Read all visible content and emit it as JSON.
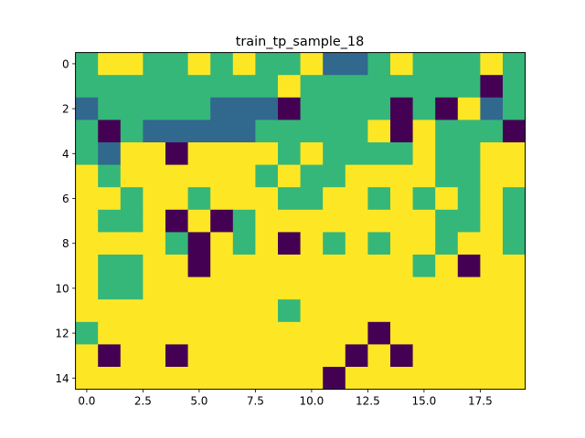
{
  "chart_data": {
    "type": "heatmap",
    "title": "train_tp_sample_18",
    "xlabel": "",
    "ylabel": "",
    "xlim": [
      -0.5,
      19.5
    ],
    "ylim": [
      14.5,
      -0.5
    ],
    "x_ticks": [
      0,
      2.5,
      5,
      7.5,
      10,
      12.5,
      15,
      17.5
    ],
    "x_tick_labels": [
      "0.0",
      "2.5",
      "5.0",
      "7.5",
      "10.0",
      "12.5",
      "15.0",
      "17.5"
    ],
    "y_ticks": [
      0,
      2,
      4,
      6,
      8,
      10,
      12,
      14
    ],
    "y_tick_labels": [
      "0",
      "2",
      "4",
      "6",
      "8",
      "10",
      "12",
      "14"
    ],
    "grid": false,
    "colormap": "viridis",
    "palette": {
      "0": "#440154",
      "1": "#31688e",
      "2": "#35b779",
      "3": "#fde725"
    },
    "rows": [
      [
        2,
        3,
        3,
        2,
        2,
        3,
        2,
        3,
        2,
        2,
        3,
        1,
        1,
        2,
        3,
        2,
        2,
        2,
        3,
        2
      ],
      [
        2,
        2,
        2,
        2,
        2,
        2,
        2,
        2,
        2,
        3,
        2,
        2,
        2,
        2,
        2,
        2,
        2,
        2,
        0,
        2
      ],
      [
        1,
        2,
        2,
        2,
        2,
        2,
        1,
        1,
        1,
        0,
        2,
        2,
        2,
        2,
        0,
        2,
        0,
        3,
        1,
        2
      ],
      [
        2,
        0,
        2,
        1,
        1,
        1,
        1,
        1,
        2,
        2,
        2,
        2,
        2,
        3,
        0,
        3,
        2,
        2,
        2,
        0
      ],
      [
        2,
        1,
        3,
        3,
        0,
        3,
        3,
        3,
        3,
        2,
        3,
        2,
        2,
        2,
        2,
        3,
        2,
        2,
        3,
        3
      ],
      [
        3,
        2,
        3,
        3,
        3,
        3,
        3,
        3,
        2,
        3,
        2,
        2,
        3,
        3,
        3,
        3,
        2,
        2,
        3,
        3
      ],
      [
        3,
        3,
        2,
        3,
        3,
        2,
        3,
        3,
        3,
        2,
        2,
        3,
        3,
        2,
        3,
        2,
        3,
        2,
        3,
        2
      ],
      [
        3,
        2,
        2,
        3,
        0,
        3,
        0,
        2,
        3,
        3,
        3,
        3,
        3,
        3,
        3,
        3,
        2,
        2,
        3,
        2
      ],
      [
        3,
        3,
        3,
        3,
        2,
        0,
        3,
        2,
        3,
        0,
        3,
        2,
        3,
        2,
        3,
        3,
        2,
        3,
        3,
        2
      ],
      [
        3,
        2,
        2,
        3,
        3,
        0,
        3,
        3,
        3,
        3,
        3,
        3,
        3,
        3,
        3,
        2,
        3,
        0,
        3,
        3
      ],
      [
        3,
        2,
        2,
        3,
        3,
        3,
        3,
        3,
        3,
        3,
        3,
        3,
        3,
        3,
        3,
        3,
        3,
        3,
        3,
        3
      ],
      [
        3,
        3,
        3,
        3,
        3,
        3,
        3,
        3,
        3,
        2,
        3,
        3,
        3,
        3,
        3,
        3,
        3,
        3,
        3,
        3
      ],
      [
        2,
        3,
        3,
        3,
        3,
        3,
        3,
        3,
        3,
        3,
        3,
        3,
        3,
        0,
        3,
        3,
        3,
        3,
        3,
        3
      ],
      [
        3,
        0,
        3,
        3,
        0,
        3,
        3,
        3,
        3,
        3,
        3,
        3,
        0,
        3,
        0,
        3,
        3,
        3,
        3,
        3
      ],
      [
        3,
        3,
        3,
        3,
        3,
        3,
        3,
        3,
        3,
        3,
        3,
        0,
        3,
        3,
        3,
        3,
        3,
        3,
        3,
        3
      ]
    ]
  }
}
